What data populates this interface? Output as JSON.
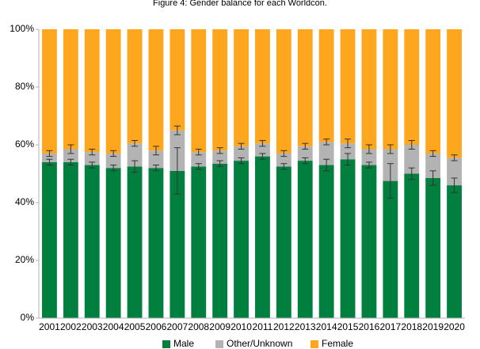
{
  "chart_data": {
    "type": "stacked-bar",
    "title": "Figure 4: Gender balance for each Worldcon.",
    "categories": [
      "2001",
      "2002",
      "2003",
      "2004",
      "2005",
      "2006",
      "2007",
      "2008",
      "2009",
      "2010",
      "2011",
      "2012",
      "2013",
      "2014",
      "2015",
      "2016",
      "2017",
      "2018",
      "2019",
      "2020"
    ],
    "series": [
      {
        "name": "Male",
        "color": "#007f3f",
        "values": [
          54,
          54,
          53,
          52,
          52.5,
          52,
          51,
          52.5,
          53.5,
          54.5,
          56,
          52.5,
          54.5,
          53,
          55,
          53,
          47.5,
          50,
          48.5,
          46
        ],
        "errors": [
          1,
          1,
          1,
          1,
          2,
          1,
          8,
          1,
          1,
          1,
          1,
          1,
          1,
          2,
          2,
          1,
          6,
          2,
          2.5,
          2.5
        ]
      },
      {
        "name": "Other/Unknown",
        "color": "#b3b3b3",
        "values": [
          3,
          4.5,
          4.5,
          5,
          8,
          6,
          14,
          5,
          4.5,
          5,
          4.5,
          4.5,
          5,
          8,
          5.5,
          5.5,
          11,
          10,
          8.5,
          9.5
        ],
        "errors": [
          1,
          1.5,
          1,
          1,
          1,
          1.5,
          1.5,
          1,
          1,
          1,
          1,
          1,
          1,
          1,
          1.5,
          1.5,
          1.5,
          1.5,
          1,
          1
        ]
      },
      {
        "name": "Female",
        "color": "#ffa61f",
        "values": [
          43,
          41.5,
          42.5,
          43,
          39.5,
          42,
          35,
          42.5,
          42,
          40.5,
          39.5,
          43,
          40.5,
          39,
          39.5,
          41.5,
          41.5,
          40,
          43,
          44.5
        ]
      }
    ],
    "ylim": [
      0,
      100
    ],
    "yticks": [
      {
        "value": 0,
        "label": "0%"
      },
      {
        "value": 20,
        "label": "20%"
      },
      {
        "value": 40,
        "label": "40%"
      },
      {
        "value": 60,
        "label": "60%"
      },
      {
        "value": 80,
        "label": "80%"
      },
      {
        "value": 100,
        "label": "100%"
      }
    ],
    "grid": false
  }
}
